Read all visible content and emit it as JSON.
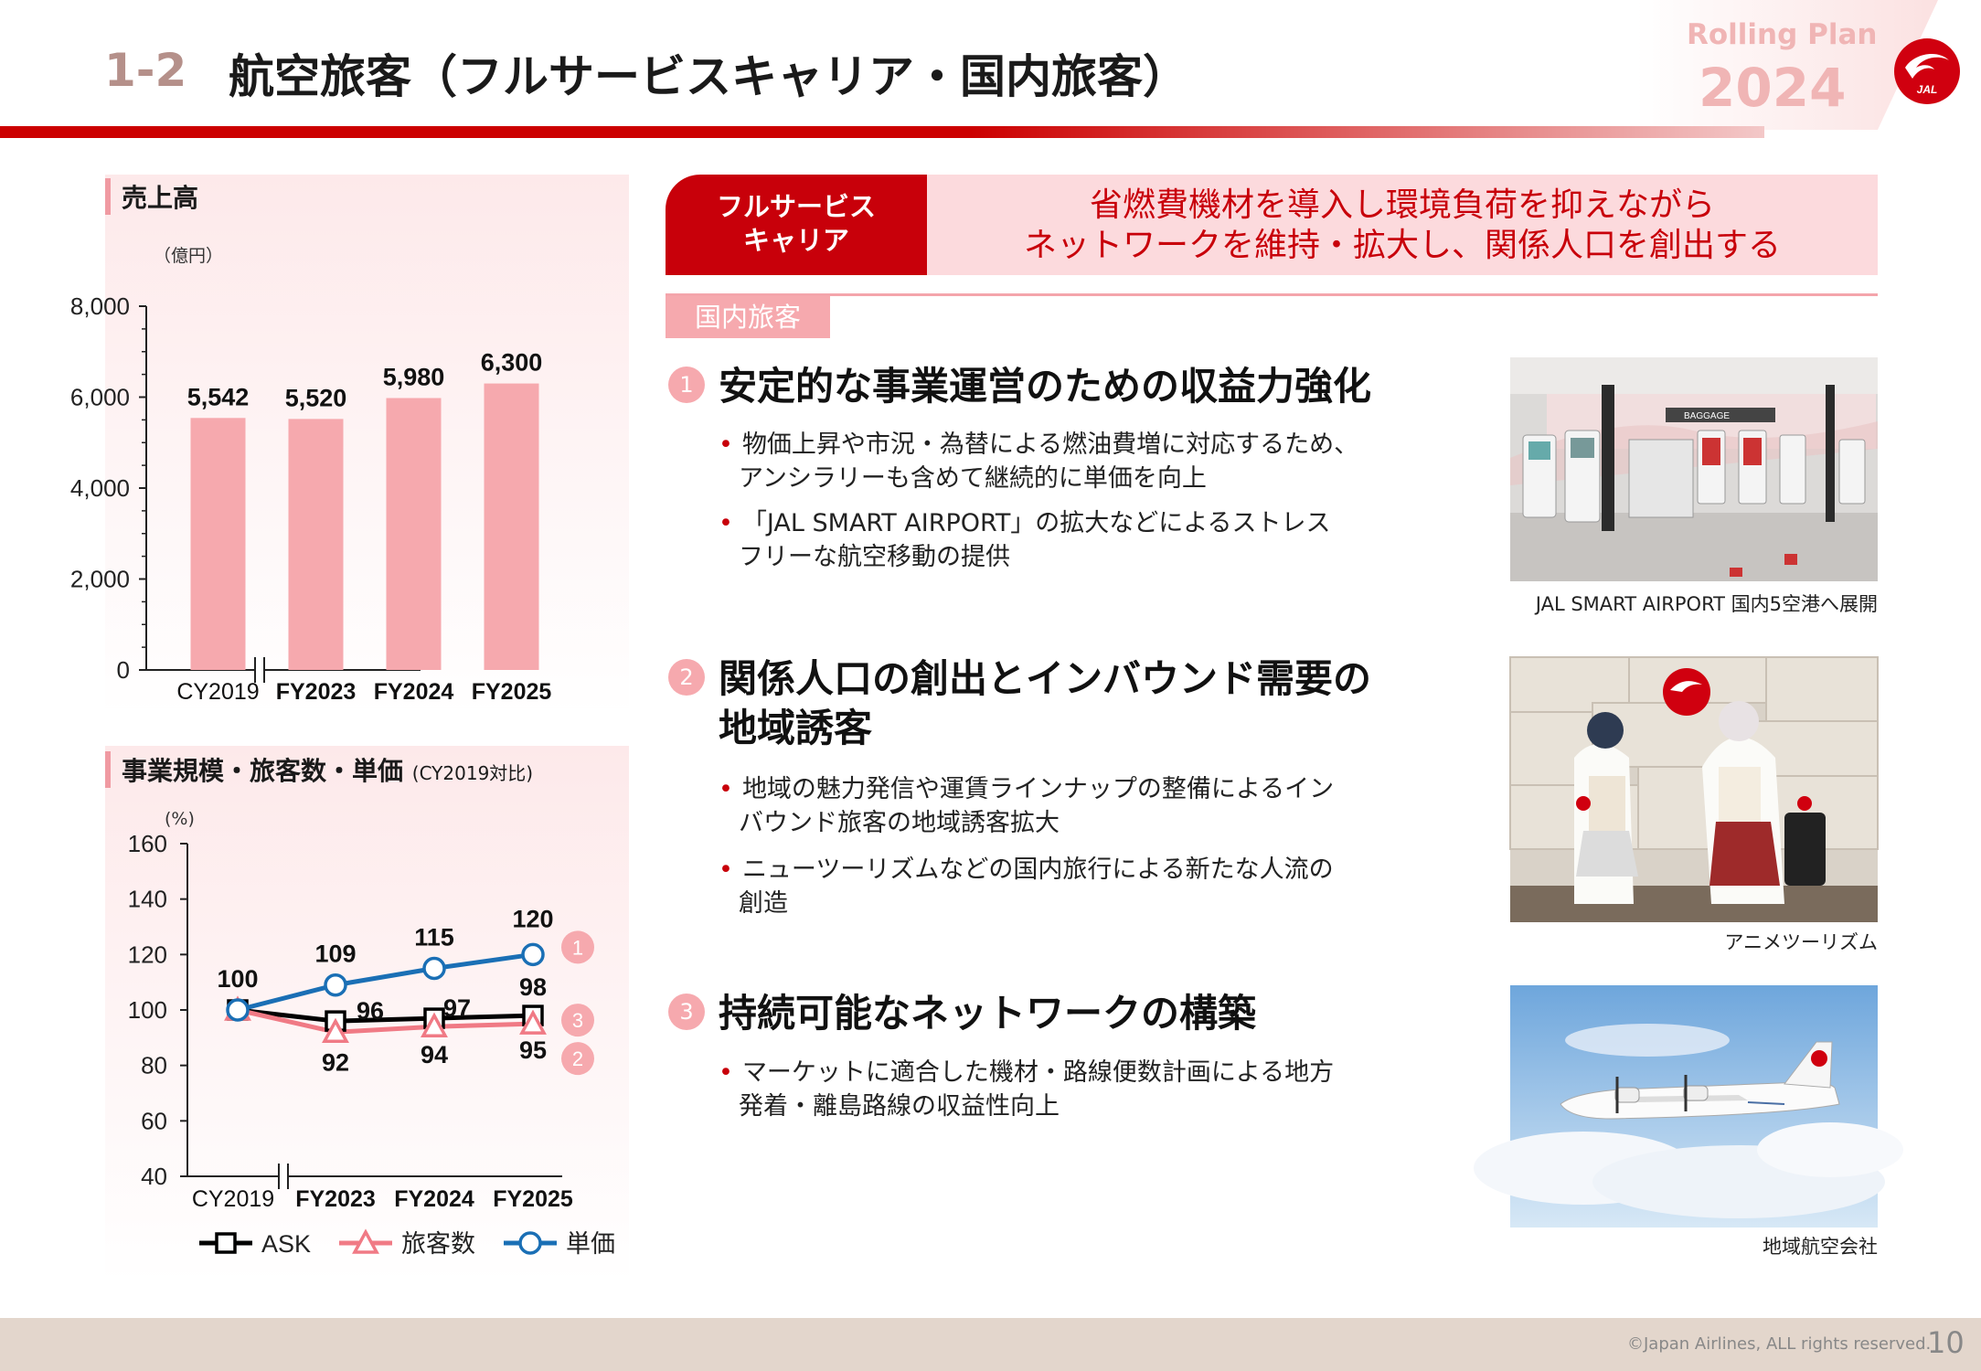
{
  "header": {
    "section_number": "1-2",
    "title": "航空旅客（フルサービスキャリア・国内旅客）",
    "rolling_plan": "Rolling Plan",
    "year": "2024",
    "logo_text": "JAL"
  },
  "revenue_panel": {
    "title": "売上高",
    "unit": "（億円）"
  },
  "scale_panel": {
    "title": "事業規模・旅客数・単価",
    "title_note": "(CY2019対比)",
    "unit": "(%)"
  },
  "chart_data": [
    {
      "type": "bar",
      "title": "売上高",
      "ylabel": "（億円）",
      "categories": [
        "CY2019",
        "FY2023",
        "FY2024",
        "FY2025"
      ],
      "values": [
        5542,
        5520,
        5980,
        6300
      ],
      "value_labels": [
        "5,542",
        "5,520",
        "5,980",
        "6,300"
      ],
      "ylim": [
        0,
        8000
      ],
      "yticks": [
        "0",
        "2,000",
        "4,000",
        "6,000",
        "8,000"
      ],
      "color": "#f6a9ae",
      "axis_break_after": "CY2019"
    },
    {
      "type": "line",
      "title": "事業規模・旅客数・単価",
      "ylabel": "(%)",
      "categories": [
        "CY2019",
        "FY2023",
        "FY2024",
        "FY2025"
      ],
      "ylim": [
        40,
        160
      ],
      "yticks": [
        "40",
        "60",
        "80",
        "100",
        "120",
        "140",
        "160"
      ],
      "axis_break_after": "CY2019",
      "series": [
        {
          "name": "ASK",
          "values": [
            100,
            96,
            97,
            98
          ],
          "color": "#000000",
          "marker": "square",
          "badge": "3"
        },
        {
          "name": "旅客数",
          "values": [
            100,
            92,
            94,
            95
          ],
          "color": "#f07a85",
          "marker": "triangle",
          "badge": "2"
        },
        {
          "name": "単価",
          "values": [
            100,
            109,
            115,
            120
          ],
          "color": "#1a6fb5",
          "marker": "circle",
          "badge": "1"
        }
      ],
      "data_labels": {
        "start": "100",
        "ask": [
          "96",
          "97",
          "98"
        ],
        "pax": [
          "92",
          "94",
          "95"
        ],
        "price": [
          "109",
          "115",
          "120"
        ]
      }
    }
  ],
  "fsc": {
    "label": "フルサービスキャリア",
    "label_line1": "フルサービス",
    "label_line2": "キャリア",
    "message_line1": "省燃費機材を導入し環境負荷を抑えながら",
    "message_line2": "ネットワークを維持・拡大し、関係人口を創出する"
  },
  "domestic_label": "国内旅客",
  "sections": [
    {
      "num": "1",
      "title": "安定的な事業運営のための収益力強化",
      "bullets": [
        [
          "物価上昇や市況・為替による燃油費増に対応するため、",
          "アンシラリーも含めて継続的に単価を向上"
        ],
        [
          "「JAL SMART AIRPORT」の拡大などによるストレス",
          "フリーな航空移動の提供"
        ]
      ],
      "caption": "JAL SMART AIRPORT 国内5空港へ展開"
    },
    {
      "num": "2",
      "title_line1": "関係人口の創出とインバウンド需要の",
      "title_line2": "地域誘客",
      "bullets": [
        [
          "地域の魅力発信や運賃ラインナップの整備によるイン",
          "バウンド旅客の地域誘客拡大"
        ],
        [
          "ニューツーリズムなどの国内旅行による新たな人流の",
          "創造"
        ]
      ],
      "caption": "アニメツーリズム"
    },
    {
      "num": "3",
      "title": "持続可能なネットワークの構築",
      "bullets": [
        [
          "マーケットに適合した機材・路線便数計画による地方",
          "発着・離島路線の収益性向上"
        ]
      ],
      "caption": "地域航空会社"
    }
  ],
  "photo_text": {
    "baggage": "BAGGAGE"
  },
  "footer": {
    "copyright": "©Japan Airlines, ALL rights reserved.",
    "page": "10"
  }
}
